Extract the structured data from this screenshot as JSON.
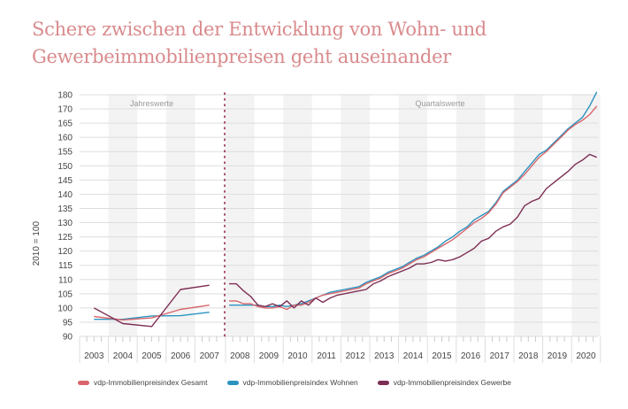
{
  "title": "Schere zwischen der Entwicklung von Wohn- und Gewerbeimmobilienpreisen geht auseinander",
  "chart_data": {
    "type": "line",
    "title": "Schere zwischen der Entwicklung von Wohn- und Gewerbeimmobilienpreisen geht auseinander",
    "ylabel": "2010 = 100",
    "xlabel": "",
    "ylim": [
      90,
      180
    ],
    "y_tick_labels": [
      "180",
      "170",
      "165",
      "160",
      "155",
      "150",
      "145",
      "140",
      "135",
      "130",
      "125",
      "120",
      "115",
      "110",
      "105",
      "100",
      "95",
      "90"
    ],
    "x_tick_labels": [
      "2003",
      "2004",
      "2005",
      "2006",
      "2007",
      "2008",
      "2009",
      "2010",
      "2011",
      "2012",
      "2013",
      "2014",
      "2015",
      "2016",
      "2017",
      "2018",
      "2019",
      "2020"
    ],
    "section_labels": [
      "Jahreswerte",
      "Quartalswerte"
    ],
    "grid": true,
    "legend_position": "bottom",
    "annual": {
      "x": [
        "2003",
        "2004",
        "2005",
        "2006",
        "2007"
      ],
      "series": [
        {
          "name": "vdp-Immobilienpreisindex Gesamt",
          "color": "#d9666b",
          "values": [
            97.0,
            95.8,
            96.5,
            99.5,
            101.0
          ]
        },
        {
          "name": "vdp-Immobilienpreisindex Wohnen",
          "color": "#2a93c0",
          "values": [
            96.0,
            96.0,
            97.2,
            97.3,
            98.5
          ]
        },
        {
          "name": "vdp-Immobilienpreisindex Gewerbe",
          "color": "#7d2e55",
          "values": [
            100.0,
            94.5,
            93.5,
            106.5,
            108.0
          ]
        }
      ]
    },
    "quarterly": {
      "start": "2008-Q1",
      "end": "2020-Q4",
      "series": [
        {
          "name": "vdp-Immobilienpreisindex Gesamt",
          "color": "#d9666b",
          "values": [
            102.5,
            102.5,
            101.5,
            101.5,
            100.5,
            100,
            100,
            100.5,
            99.5,
            101,
            101,
            102,
            103.5,
            104.5,
            105,
            105.5,
            106,
            106.5,
            107,
            108.5,
            109.5,
            110.5,
            112,
            113,
            114,
            115.5,
            117,
            118,
            119.5,
            121,
            122.5,
            124,
            126,
            128,
            130,
            131.5,
            133.5,
            136.5,
            140.5,
            142.5,
            144.5,
            147,
            150,
            153,
            155,
            157.5,
            160,
            162.5,
            164.5,
            166,
            168,
            171
          ]
        },
        {
          "name": "vdp-Immobilienpreisindex Wohnen",
          "color": "#2a93c0",
          "values": [
            101,
            101,
            101,
            101,
            101,
            100.5,
            100.5,
            101,
            100.5,
            101,
            101.5,
            102.5,
            103.5,
            104.5,
            105.5,
            106,
            106.5,
            107,
            107.5,
            109,
            110,
            111,
            112.5,
            113.5,
            114.5,
            116,
            117.5,
            118.5,
            120,
            121.5,
            123.5,
            125,
            127,
            128.5,
            131,
            132.5,
            134,
            137,
            141,
            143,
            145,
            148,
            151,
            154,
            155.5,
            158,
            160.5,
            163,
            165,
            167,
            171,
            176
          ]
        },
        {
          "name": "vdp-Immobilienpreisindex Gewerbe",
          "color": "#7d2e55",
          "values": [
            108.5,
            108.5,
            106,
            104,
            101,
            100.5,
            101.5,
            100.5,
            102.5,
            100,
            102.5,
            101,
            103.5,
            102,
            103.5,
            104.5,
            105,
            105.5,
            106,
            106.5,
            108.5,
            109.5,
            111,
            112,
            113,
            114,
            115.5,
            115.5,
            116,
            117,
            116.5,
            117,
            118,
            119.5,
            121,
            123.5,
            124.5,
            127,
            128.5,
            129.5,
            132,
            136,
            137.5,
            138.5,
            142,
            144,
            146,
            148,
            150.5,
            152,
            154,
            153
          ]
        }
      ]
    }
  },
  "legend": [
    {
      "label": "vdp-Immobilienpreisindex Gesamt",
      "color": "#d9666b"
    },
    {
      "label": "vdp-Immobilienpreisindex Wohnen",
      "color": "#2a93c0"
    },
    {
      "label": "vdp-Immobilienpreisindex Gewerbe",
      "color": "#7d2e55"
    }
  ]
}
